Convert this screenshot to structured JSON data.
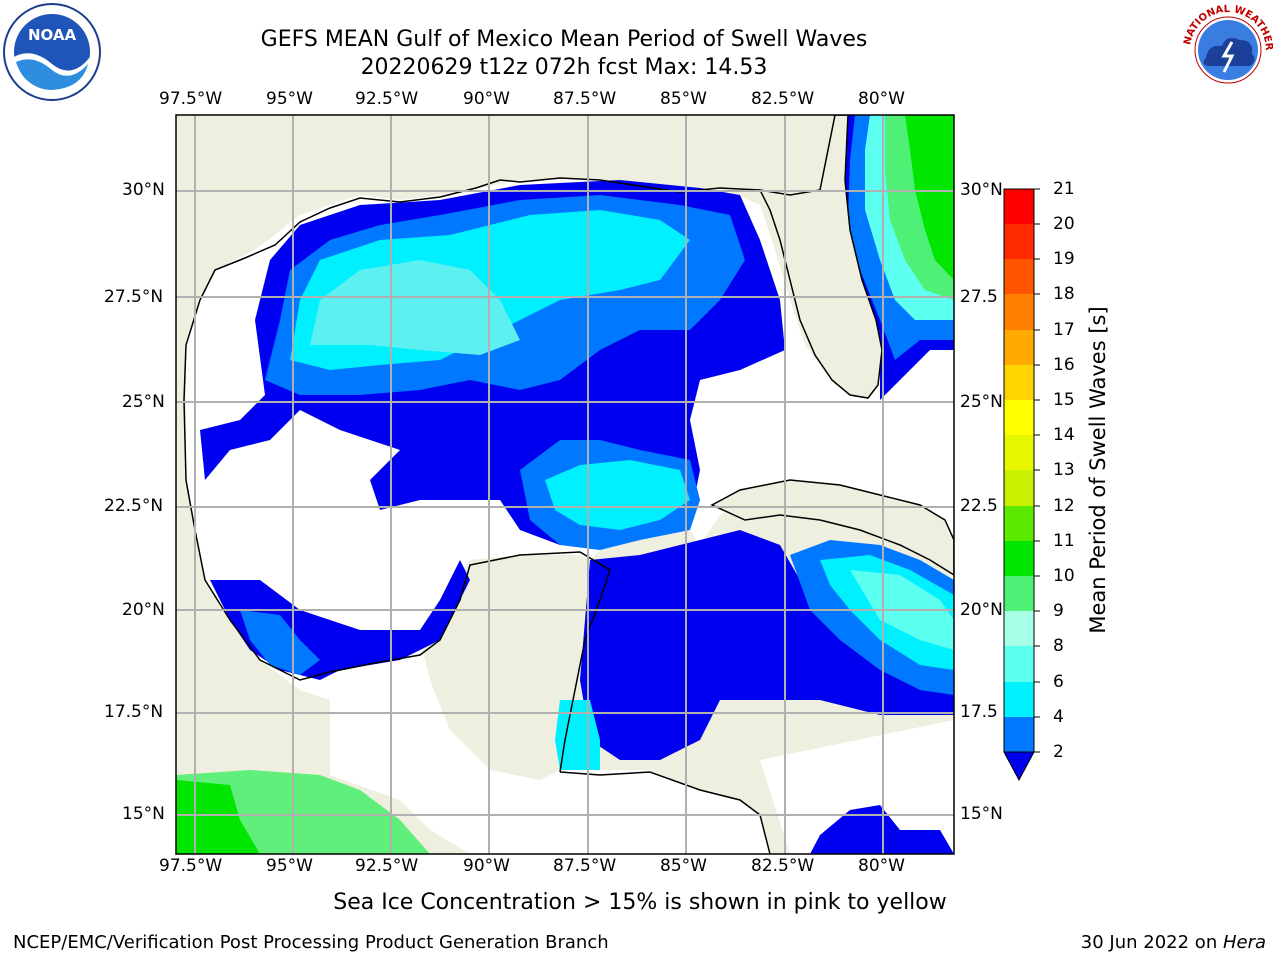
{
  "title": {
    "line1": "GEFS MEAN Gulf of Mexico Mean Period of Swell Waves",
    "line2": "20220629 t12z 072h fcst   Max: 14.53"
  },
  "axes": {
    "lon_ticks": [
      "97.5°W",
      "95°W",
      "92.5°W",
      "90°W",
      "87.5°W",
      "85°W",
      "82.5°W",
      "80°W"
    ],
    "lat_ticks": [
      "30°N",
      "27.5°N",
      "25°N",
      "22.5°N",
      "20°N",
      "17.5°N",
      "15°N"
    ],
    "lat_ticks_right": [
      "30°N",
      "27.5",
      "25°N",
      "22.5",
      "20°N",
      "17.5",
      "15°N"
    ]
  },
  "colorbar": {
    "label": "Mean Period of Swell Waves [s]",
    "ticks": [
      "21",
      "20",
      "19",
      "18",
      "17",
      "16",
      "15",
      "14",
      "13",
      "12",
      "11",
      "10",
      "9",
      "8",
      "6",
      "4",
      "2"
    ],
    "colors": [
      "#ff0000",
      "#ff2a00",
      "#ff5500",
      "#ff7f00",
      "#ffaa00",
      "#ffd400",
      "#ffff00",
      "#e6f500",
      "#c8f000",
      "#5bea00",
      "#00e600",
      "#00cc00",
      "#4ef075",
      "#a8ffe8",
      "#5cfff0",
      "#00f0ff",
      "#0078ff",
      "#0000f0"
    ]
  },
  "note": "Sea Ice Concentration > 15% is shown in pink to yellow",
  "footer": {
    "left": "NCEP/EMC/Verification Post Processing Product Generation Branch",
    "right_prefix": "30 Jun 2022 on ",
    "right_host": "Hera"
  },
  "logos": {
    "noaa": "NOAA",
    "nws": "NATIONAL WEATHER SERVICE"
  }
}
